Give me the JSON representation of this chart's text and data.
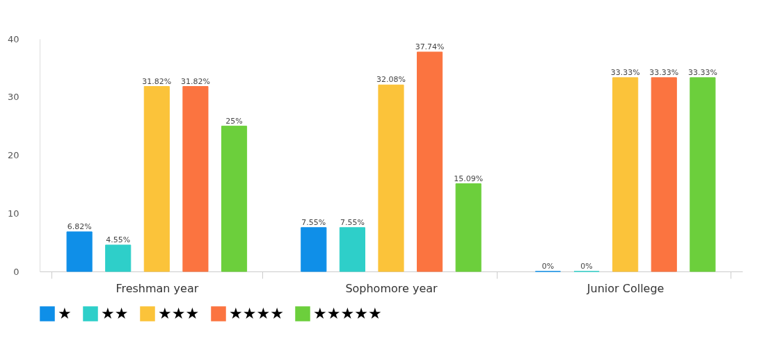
{
  "chart_data": {
    "type": "bar",
    "categories": [
      "Freshman year",
      "Sophomore year",
      "Junior College"
    ],
    "series": [
      {
        "name": "★",
        "color": "#0f8fe8",
        "values": [
          6.82,
          7.55,
          0
        ],
        "value_labels": [
          "6.82%",
          "7.55%",
          "0%"
        ]
      },
      {
        "name": "★★",
        "color": "#2ecfc9",
        "values": [
          4.55,
          7.55,
          0
        ],
        "value_labels": [
          "4.55%",
          "7.55%",
          "0%"
        ]
      },
      {
        "name": "★★★",
        "color": "#fbc33a",
        "values": [
          31.82,
          32.08,
          33.33
        ],
        "value_labels": [
          "31.82%",
          "32.08%",
          "33.33%"
        ]
      },
      {
        "name": "★★★★",
        "color": "#fb7440",
        "values": [
          31.82,
          37.74,
          33.33
        ],
        "value_labels": [
          "31.82%",
          "37.74%",
          "33.33%"
        ]
      },
      {
        "name": "★★★★★",
        "color": "#6ccf3c",
        "values": [
          25,
          15.09,
          33.33
        ],
        "value_labels": [
          "25%",
          "15.09%",
          "33.33%"
        ]
      }
    ],
    "ylim": [
      0,
      40
    ],
    "yticks": [
      0,
      10,
      20,
      30,
      40
    ],
    "grid": false,
    "legend": "bottom"
  }
}
